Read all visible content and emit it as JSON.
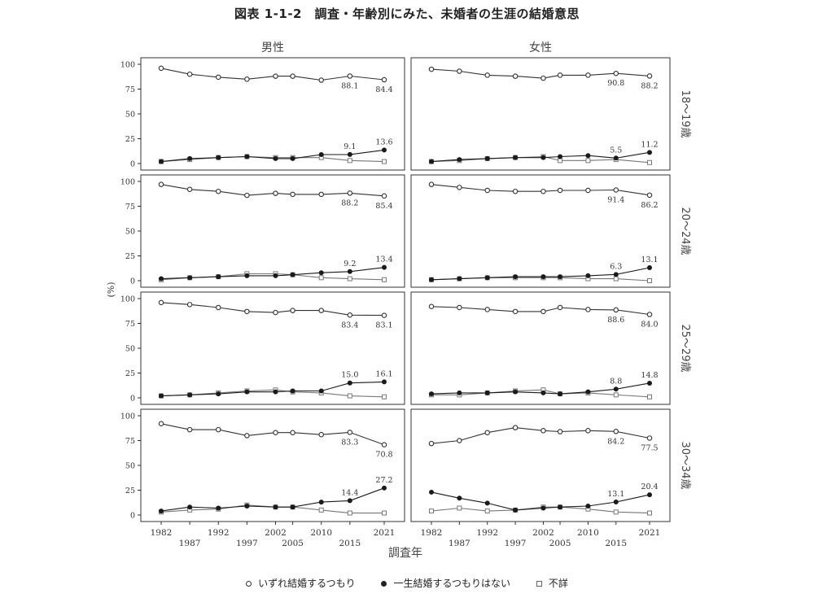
{
  "title": "図表 1-1-2　調査・年齢別にみた、未婚者の生涯の結婚意思",
  "colors": {
    "open": "#333333",
    "filled": "#1a1a1a",
    "square": "#777777",
    "frame": "#333333"
  },
  "legend": [
    {
      "label": "いずれ結婚するつもり",
      "marker": "open-circle"
    },
    {
      "label": "一生結婚するつもりはない",
      "marker": "filled-circle"
    },
    {
      "label": "不詳",
      "marker": "open-square"
    }
  ],
  "chart_data": {
    "type": "line",
    "xlabel": "調査年",
    "ylabel": "(%)",
    "x": [
      1982,
      1987,
      1992,
      1997,
      2002,
      2005,
      2010,
      2015,
      2021
    ],
    "x_ticks_upper": [
      "1982",
      "1992",
      "2002",
      "2010",
      "2021"
    ],
    "x_ticks_lower": [
      "1987",
      "1997",
      "2005",
      "2015"
    ],
    "ylim": [
      0,
      100
    ],
    "y_ticks": [
      "0",
      "25",
      "50",
      "75",
      "100"
    ],
    "columns": [
      "男性",
      "女性"
    ],
    "rows": [
      "18～19歳",
      "20～24歳",
      "25～29歳",
      "30～34歳"
    ],
    "panels": [
      {
        "sex": "男性",
        "age": "18～19歳",
        "series": [
          {
            "marker": "open-circle",
            "values": [
              96,
              90,
              87,
              85,
              88,
              88,
              84,
              88.1,
              84.4
            ]
          },
          {
            "marker": "filled-circle",
            "values": [
              2,
              5,
              6,
              7,
              5,
              5,
              9,
              9.1,
              13.6
            ]
          },
          {
            "marker": "open-square",
            "values": [
              2,
              4,
              6,
              7,
              6,
              6,
              6,
              3,
              2
            ]
          }
        ],
        "labels": [
          {
            "text": "88.1",
            "at": 7,
            "pos": "below"
          },
          {
            "text": "84.4",
            "at": 8,
            "pos": "below"
          },
          {
            "text": "9.1",
            "at": 7,
            "pos": "above"
          },
          {
            "text": "13.6",
            "at": 8,
            "pos": "above"
          }
        ]
      },
      {
        "sex": "女性",
        "age": "18～19歳",
        "series": [
          {
            "marker": "open-circle",
            "values": [
              95,
              93,
              89,
              88,
              86,
              89,
              89,
              90.8,
              88.2
            ]
          },
          {
            "marker": "filled-circle",
            "values": [
              2,
              4,
              5,
              6,
              6,
              7,
              8,
              5.5,
              11.2
            ]
          },
          {
            "marker": "open-square",
            "values": [
              2,
              3,
              5,
              6,
              7,
              3,
              3,
              4,
              1
            ]
          }
        ],
        "labels": [
          {
            "text": "90.8",
            "at": 7,
            "pos": "below"
          },
          {
            "text": "88.2",
            "at": 8,
            "pos": "below"
          },
          {
            "text": "5.5",
            "at": 7,
            "pos": "above"
          },
          {
            "text": "11.2",
            "at": 8,
            "pos": "above"
          }
        ]
      },
      {
        "sex": "男性",
        "age": "20～24歳",
        "series": [
          {
            "marker": "open-circle",
            "values": [
              97,
              92,
              90,
              86,
              88,
              87,
              87,
              88.2,
              85.4
            ]
          },
          {
            "marker": "filled-circle",
            "values": [
              2,
              3,
              4,
              5,
              5,
              6,
              8,
              9.2,
              13.4
            ]
          },
          {
            "marker": "open-square",
            "values": [
              1,
              3,
              4,
              7,
              7,
              6,
              3,
              2,
              1
            ]
          }
        ],
        "labels": [
          {
            "text": "88.2",
            "at": 7,
            "pos": "below"
          },
          {
            "text": "85.4",
            "at": 8,
            "pos": "below"
          },
          {
            "text": "9.2",
            "at": 7,
            "pos": "above"
          },
          {
            "text": "13.4",
            "at": 8,
            "pos": "above"
          }
        ]
      },
      {
        "sex": "女性",
        "age": "20～24歳",
        "series": [
          {
            "marker": "open-circle",
            "values": [
              97,
              94,
              91,
              90,
              90,
              91,
              91,
              91.4,
              86.2
            ]
          },
          {
            "marker": "filled-circle",
            "values": [
              1,
              2,
              3,
              4,
              4,
              4,
              5,
              6.3,
              13.1
            ]
          },
          {
            "marker": "open-square",
            "values": [
              1,
              2,
              3,
              3,
              3,
              3,
              2,
              2,
              0
            ]
          }
        ],
        "labels": [
          {
            "text": "91.4",
            "at": 7,
            "pos": "below"
          },
          {
            "text": "86.2",
            "at": 8,
            "pos": "below"
          },
          {
            "text": "6.3",
            "at": 7,
            "pos": "above"
          },
          {
            "text": "13.1",
            "at": 8,
            "pos": "above"
          }
        ]
      },
      {
        "sex": "男性",
        "age": "25～29歳",
        "series": [
          {
            "marker": "open-circle",
            "values": [
              96,
              94,
              91,
              87,
              86,
              88,
              88,
              83.4,
              83.1
            ]
          },
          {
            "marker": "filled-circle",
            "values": [
              2,
              3,
              4,
              6,
              6,
              7,
              7,
              15.0,
              16.1
            ]
          },
          {
            "marker": "open-square",
            "values": [
              2,
              3,
              5,
              7,
              8,
              6,
              5,
              2,
              1
            ]
          }
        ],
        "labels": [
          {
            "text": "83.4",
            "at": 7,
            "pos": "below"
          },
          {
            "text": "83.1",
            "at": 8,
            "pos": "below"
          },
          {
            "text": "15.0",
            "at": 7,
            "pos": "above"
          },
          {
            "text": "16.1",
            "at": 8,
            "pos": "above"
          }
        ]
      },
      {
        "sex": "女性",
        "age": "25～29歳",
        "series": [
          {
            "marker": "open-circle",
            "values": [
              92,
              91,
              89,
              87,
              87,
              91,
              89,
              88.6,
              84.0
            ]
          },
          {
            "marker": "filled-circle",
            "values": [
              4,
              5,
              5,
              6,
              5,
              4,
              6,
              8.8,
              14.8
            ]
          },
          {
            "marker": "open-square",
            "values": [
              3,
              3,
              5,
              7,
              8,
              4,
              5,
              3,
              1
            ]
          }
        ],
        "labels": [
          {
            "text": "88.6",
            "at": 7,
            "pos": "below"
          },
          {
            "text": "84.0",
            "at": 8,
            "pos": "below"
          },
          {
            "text": "8.8",
            "at": 7,
            "pos": "above"
          },
          {
            "text": "14.8",
            "at": 8,
            "pos": "above"
          }
        ]
      },
      {
        "sex": "男性",
        "age": "30～34歳",
        "series": [
          {
            "marker": "open-circle",
            "values": [
              92,
              86,
              86,
              80,
              83,
              83,
              81,
              83.3,
              70.8
            ]
          },
          {
            "marker": "filled-circle",
            "values": [
              4,
              8,
              7,
              9,
              8,
              8,
              13,
              14.4,
              27.2
            ]
          },
          {
            "marker": "open-square",
            "values": [
              3,
              5,
              6,
              10,
              8,
              8,
              5,
              2,
              2
            ]
          }
        ],
        "labels": [
          {
            "text": "83.3",
            "at": 7,
            "pos": "below"
          },
          {
            "text": "70.8",
            "at": 8,
            "pos": "below"
          },
          {
            "text": "14.4",
            "at": 7,
            "pos": "above"
          },
          {
            "text": "27.2",
            "at": 8,
            "pos": "above"
          }
        ]
      },
      {
        "sex": "女性",
        "age": "30～34歳",
        "series": [
          {
            "marker": "open-circle",
            "values": [
              72,
              75,
              83,
              88,
              85,
              84,
              85,
              84.2,
              77.5
            ]
          },
          {
            "marker": "filled-circle",
            "values": [
              23,
              17,
              12,
              5,
              7,
              8,
              9,
              13.1,
              20.4
            ]
          },
          {
            "marker": "open-square",
            "values": [
              4,
              7,
              4,
              5,
              8,
              8,
              6,
              3,
              2
            ]
          }
        ],
        "labels": [
          {
            "text": "84.2",
            "at": 7,
            "pos": "below"
          },
          {
            "text": "77.5",
            "at": 8,
            "pos": "below"
          },
          {
            "text": "13.1",
            "at": 7,
            "pos": "above"
          },
          {
            "text": "20.4",
            "at": 8,
            "pos": "above"
          }
        ]
      }
    ]
  }
}
